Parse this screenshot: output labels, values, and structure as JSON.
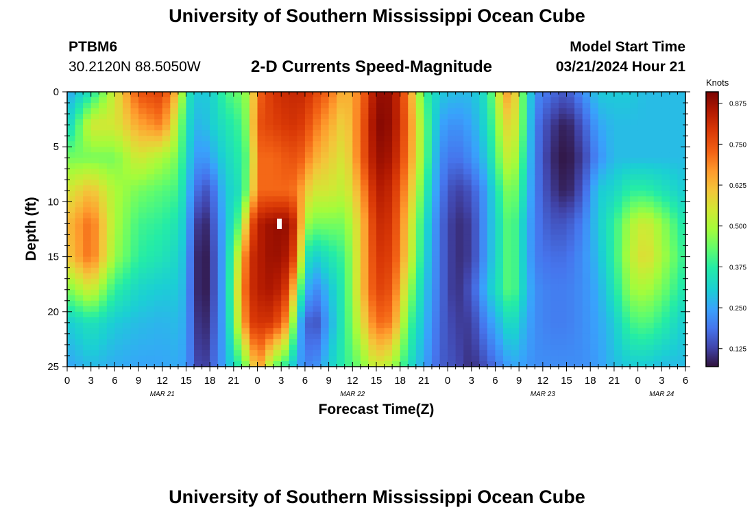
{
  "page": {
    "title_top": "University of Southern Mississippi Ocean Cube",
    "title_bottom": "University of Southern Mississippi Ocean Cube",
    "station_id": "PTBM6",
    "station_coords": "30.2120N  88.5050W",
    "chart_title": "2-D Currents Speed-Magnitude",
    "model_start_label": "Model Start Time",
    "model_start_value": "03/21/2024 Hour 21"
  },
  "chart_data": {
    "type": "heatmap",
    "title": "2-D Currents Speed-Magnitude",
    "xlabel": "Forecast Time(Z)",
    "ylabel": "Depth (ft)",
    "x_units": "hours since 03/21 00Z",
    "xlim": [
      0,
      78
    ],
    "ylim": [
      25,
      0
    ],
    "x_tick_values": [
      0,
      3,
      6,
      9,
      12,
      15,
      18,
      21,
      24,
      27,
      30,
      33,
      36,
      39,
      42,
      45,
      48,
      51,
      54,
      57,
      60,
      63,
      66,
      69,
      72,
      75,
      78
    ],
    "x_tick_labels": [
      "0",
      "3",
      "6",
      "9",
      "12",
      "15",
      "18",
      "21",
      "0",
      "3",
      "6",
      "9",
      "12",
      "15",
      "18",
      "21",
      "0",
      "3",
      "6",
      "9",
      "12",
      "15",
      "18",
      "21",
      "0",
      "3",
      "6"
    ],
    "date_labels": [
      {
        "x": 12,
        "text": "MAR 21"
      },
      {
        "x": 36,
        "text": "MAR 22"
      },
      {
        "x": 60,
        "text": "MAR 23"
      },
      {
        "x": 75,
        "text": "MAR 24"
      }
    ],
    "y_tick_values": [
      0,
      5,
      10,
      15,
      20,
      25
    ],
    "y_tick_labels": [
      "0",
      "5",
      "10",
      "15",
      "20",
      "25"
    ],
    "colorbar": {
      "label": "Knots",
      "min": 0.07,
      "max": 0.91,
      "ticks": [
        0.125,
        0.25,
        0.375,
        0.5,
        0.625,
        0.75,
        0.875
      ],
      "tick_labels": [
        "0.125",
        "0.250",
        "0.375",
        "0.500",
        "0.625",
        "0.750",
        "0.875"
      ]
    },
    "depth_profiles": [
      {
        "x": 0,
        "values": [
          0.25,
          0.3,
          0.45,
          0.55,
          0.62,
          0.6,
          0.45,
          0.3,
          0.25
        ]
      },
      {
        "x": 3,
        "values": [
          0.35,
          0.55,
          0.45,
          0.62,
          0.72,
          0.72,
          0.55,
          0.35,
          0.28
        ]
      },
      {
        "x": 6,
        "values": [
          0.55,
          0.55,
          0.45,
          0.5,
          0.5,
          0.48,
          0.38,
          0.3,
          0.26
        ]
      },
      {
        "x": 9,
        "values": [
          0.75,
          0.65,
          0.55,
          0.45,
          0.4,
          0.38,
          0.32,
          0.28,
          0.25
        ]
      },
      {
        "x": 12,
        "values": [
          0.78,
          0.7,
          0.5,
          0.42,
          0.38,
          0.35,
          0.3,
          0.27,
          0.25
        ]
      },
      {
        "x": 14,
        "values": [
          0.6,
          0.5,
          0.45,
          0.4,
          0.35,
          0.32,
          0.3,
          0.28,
          0.26
        ]
      },
      {
        "x": 15,
        "values": [
          0.38,
          0.35,
          0.33,
          0.3,
          0.28,
          0.27,
          0.26,
          0.25,
          0.24
        ]
      },
      {
        "x": 16,
        "values": [
          0.3,
          0.28,
          0.25,
          0.2,
          0.15,
          0.12,
          0.12,
          0.14,
          0.16
        ]
      },
      {
        "x": 17,
        "values": [
          0.3,
          0.27,
          0.22,
          0.15,
          0.08,
          0.07,
          0.07,
          0.08,
          0.1
        ]
      },
      {
        "x": 18,
        "values": [
          0.3,
          0.3,
          0.25,
          0.15,
          0.12,
          0.1,
          0.1,
          0.12,
          0.15
        ]
      },
      {
        "x": 20,
        "values": [
          0.4,
          0.35,
          0.32,
          0.3,
          0.28,
          0.28,
          0.28,
          0.27,
          0.26
        ]
      },
      {
        "x": 22,
        "values": [
          0.45,
          0.4,
          0.38,
          0.35,
          0.45,
          0.6,
          0.65,
          0.6,
          0.4
        ]
      },
      {
        "x": 23,
        "values": [
          0.5,
          0.5,
          0.45,
          0.5,
          0.72,
          0.8,
          0.8,
          0.78,
          0.5
        ]
      },
      {
        "x": 24,
        "values": [
          0.72,
          0.75,
          0.72,
          0.72,
          0.84,
          0.84,
          0.84,
          0.8,
          0.7
        ]
      },
      {
        "x": 26,
        "values": [
          0.8,
          0.78,
          0.72,
          0.72,
          0.88,
          0.88,
          0.86,
          0.8,
          0.45
        ]
      },
      {
        "x": 28,
        "values": [
          0.82,
          0.8,
          0.75,
          0.72,
          0.88,
          0.85,
          0.78,
          0.65,
          0.35
        ]
      },
      {
        "x": 29,
        "values": [
          0.82,
          0.8,
          0.75,
          0.7,
          0.78,
          0.72,
          0.5,
          0.3,
          0.25
        ]
      },
      {
        "x": 30,
        "values": [
          0.82,
          0.78,
          0.72,
          0.62,
          0.5,
          0.38,
          0.3,
          0.2,
          0.22
        ]
      },
      {
        "x": 31,
        "values": [
          0.78,
          0.72,
          0.65,
          0.55,
          0.45,
          0.3,
          0.2,
          0.12,
          0.2
        ]
      },
      {
        "x": 33,
        "values": [
          0.72,
          0.65,
          0.6,
          0.55,
          0.45,
          0.35,
          0.28,
          0.25,
          0.3
        ]
      },
      {
        "x": 35,
        "values": [
          0.62,
          0.58,
          0.55,
          0.52,
          0.45,
          0.4,
          0.38,
          0.38,
          0.38
        ]
      },
      {
        "x": 37,
        "values": [
          0.7,
          0.72,
          0.72,
          0.65,
          0.6,
          0.6,
          0.6,
          0.55,
          0.45
        ]
      },
      {
        "x": 39,
        "values": [
          0.88,
          0.9,
          0.88,
          0.85,
          0.82,
          0.8,
          0.78,
          0.72,
          0.55
        ]
      },
      {
        "x": 41,
        "values": [
          0.88,
          0.88,
          0.86,
          0.82,
          0.8,
          0.78,
          0.75,
          0.7,
          0.5
        ]
      },
      {
        "x": 43,
        "values": [
          0.7,
          0.72,
          0.7,
          0.65,
          0.6,
          0.58,
          0.5,
          0.42,
          0.35
        ]
      },
      {
        "x": 45,
        "values": [
          0.4,
          0.45,
          0.45,
          0.4,
          0.35,
          0.33,
          0.3,
          0.28,
          0.25
        ]
      },
      {
        "x": 47,
        "values": [
          0.3,
          0.25,
          0.22,
          0.2,
          0.18,
          0.18,
          0.18,
          0.17,
          0.16
        ]
      },
      {
        "x": 49,
        "values": [
          0.28,
          0.22,
          0.18,
          0.12,
          0.1,
          0.1,
          0.1,
          0.12,
          0.14
        ]
      },
      {
        "x": 51,
        "values": [
          0.28,
          0.25,
          0.22,
          0.15,
          0.12,
          0.12,
          0.15,
          0.12,
          0.1
        ]
      },
      {
        "x": 53,
        "values": [
          0.35,
          0.33,
          0.3,
          0.25,
          0.25,
          0.25,
          0.28,
          0.22,
          0.15
        ]
      },
      {
        "x": 55,
        "values": [
          0.62,
          0.55,
          0.5,
          0.42,
          0.38,
          0.38,
          0.38,
          0.3,
          0.22
        ]
      },
      {
        "x": 56,
        "values": [
          0.68,
          0.6,
          0.55,
          0.48,
          0.45,
          0.45,
          0.45,
          0.35,
          0.25
        ]
      },
      {
        "x": 57,
        "values": [
          0.5,
          0.5,
          0.45,
          0.4,
          0.35,
          0.35,
          0.35,
          0.3,
          0.25
        ]
      },
      {
        "x": 59,
        "values": [
          0.22,
          0.2,
          0.2,
          0.2,
          0.2,
          0.2,
          0.22,
          0.22,
          0.22
        ]
      },
      {
        "x": 61,
        "values": [
          0.18,
          0.12,
          0.1,
          0.12,
          0.15,
          0.18,
          0.2,
          0.2,
          0.22
        ]
      },
      {
        "x": 63,
        "values": [
          0.15,
          0.08,
          0.07,
          0.08,
          0.15,
          0.18,
          0.2,
          0.2,
          0.22
        ]
      },
      {
        "x": 65,
        "values": [
          0.22,
          0.15,
          0.12,
          0.15,
          0.2,
          0.22,
          0.22,
          0.22,
          0.22
        ]
      },
      {
        "x": 67,
        "values": [
          0.3,
          0.25,
          0.22,
          0.3,
          0.3,
          0.28,
          0.26,
          0.25,
          0.24
        ]
      },
      {
        "x": 69,
        "values": [
          0.3,
          0.28,
          0.28,
          0.32,
          0.38,
          0.38,
          0.35,
          0.3,
          0.28
        ]
      },
      {
        "x": 71,
        "values": [
          0.3,
          0.28,
          0.28,
          0.38,
          0.5,
          0.52,
          0.48,
          0.4,
          0.3
        ]
      },
      {
        "x": 73,
        "values": [
          0.28,
          0.28,
          0.28,
          0.38,
          0.55,
          0.58,
          0.5,
          0.42,
          0.3
        ]
      },
      {
        "x": 75,
        "values": [
          0.28,
          0.28,
          0.28,
          0.35,
          0.48,
          0.5,
          0.45,
          0.38,
          0.28
        ]
      },
      {
        "x": 78,
        "values": [
          0.28,
          0.28,
          0.28,
          0.3,
          0.35,
          0.38,
          0.35,
          0.3,
          0.28
        ]
      }
    ],
    "depth_levels": [
      0,
      3,
      6,
      9,
      12,
      15,
      18,
      21,
      25
    ]
  }
}
